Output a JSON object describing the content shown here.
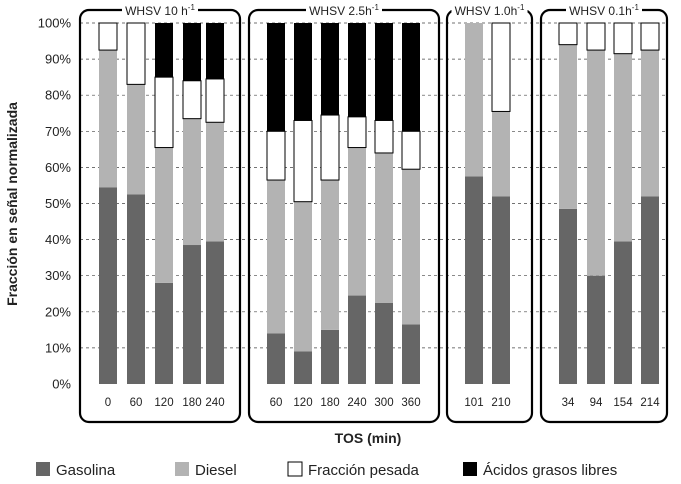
{
  "chart_data": {
    "type": "bar",
    "stacked": true,
    "ylabel": "Fracción en señal normalizada",
    "xlabel": "TOS (min)",
    "ylim": [
      0,
      100
    ],
    "yticks": [
      "0%",
      "10%",
      "20%",
      "30%",
      "40%",
      "50%",
      "60%",
      "70%",
      "80%",
      "90%",
      "100%"
    ],
    "legend_position": "bottom",
    "series": [
      {
        "name": "Gasolina",
        "color": "#666666"
      },
      {
        "name": "Diesel",
        "color": "#b3b3b3"
      },
      {
        "name": "Fracción pesada",
        "color": "#ffffff"
      },
      {
        "name": "Ácidos grasos libres",
        "color": "#000000"
      }
    ],
    "panels": [
      {
        "title": "WHSV 10 h",
        "title_sup": "-1",
        "categories": [
          "0",
          "60",
          "120",
          "180",
          "240"
        ],
        "stacks": [
          [
            54.5,
            38,
            7.5,
            0
          ],
          [
            52.5,
            30.5,
            17,
            0
          ],
          [
            28,
            37.5,
            19.5,
            15
          ],
          [
            38.5,
            35,
            10.5,
            16
          ],
          [
            39.5,
            33,
            12,
            15.5
          ]
        ]
      },
      {
        "title": "WHSV 2.5h",
        "title_sup": "-1",
        "categories": [
          "60",
          "120",
          "180",
          "240",
          "300",
          "360"
        ],
        "stacks": [
          [
            14,
            42.5,
            13.5,
            30
          ],
          [
            9,
            41.5,
            22.5,
            27
          ],
          [
            15,
            41.5,
            18,
            25.5
          ],
          [
            24.5,
            41,
            8.5,
            26
          ],
          [
            22.5,
            41.5,
            9,
            27
          ],
          [
            16.5,
            43,
            10.5,
            30
          ]
        ]
      },
      {
        "title": "WHSV 1.0h",
        "title_sup": "-1",
        "categories": [
          "101",
          "210"
        ],
        "stacks": [
          [
            57.5,
            42.5,
            0,
            0
          ],
          [
            52,
            23.5,
            24.5,
            0
          ]
        ]
      },
      {
        "title": "WHSV 0.1h",
        "title_sup": "-1",
        "categories": [
          "34",
          "94",
          "154",
          "214"
        ],
        "stacks": [
          [
            48.5,
            45.5,
            6,
            0
          ],
          [
            30,
            62.5,
            7.5,
            0
          ],
          [
            39.5,
            52,
            8.5,
            0
          ],
          [
            52,
            40.5,
            7.5,
            0
          ]
        ]
      }
    ]
  }
}
